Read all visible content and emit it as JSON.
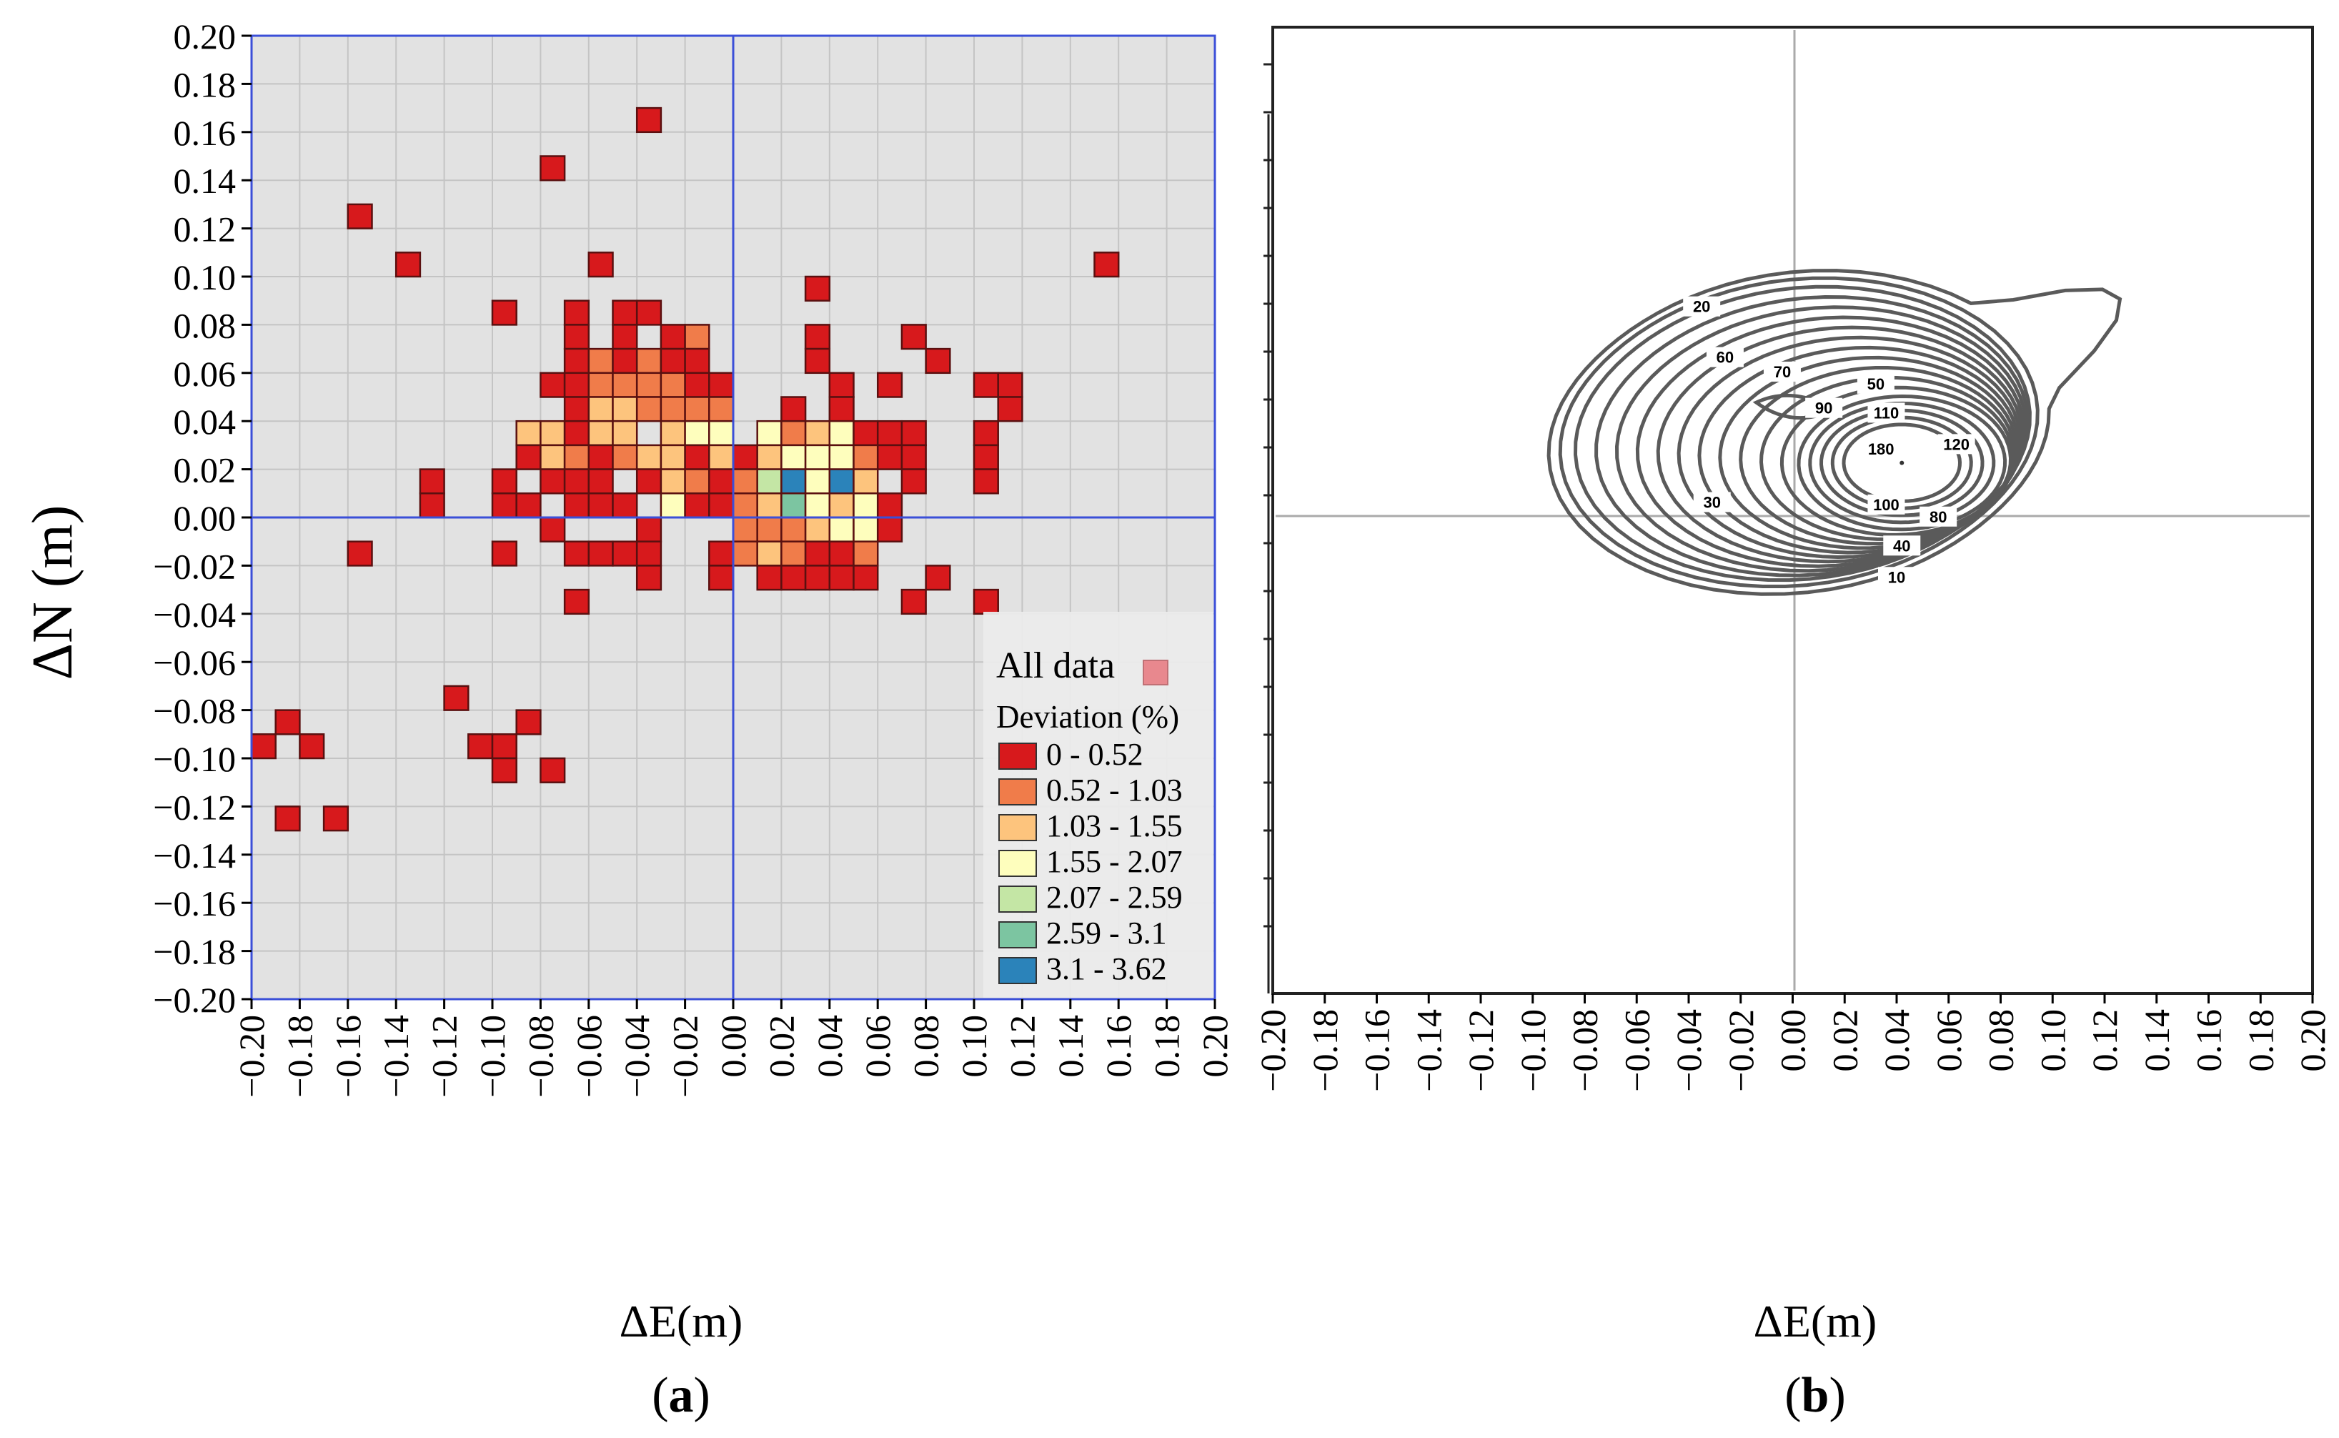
{
  "figure": {
    "panel_a_label_open": "(",
    "panel_a_label_letter": "a",
    "panel_a_label_close": ")",
    "panel_b_label_open": "(",
    "panel_b_label_letter": "b",
    "panel_b_label_close": ")"
  },
  "chart_data": [
    {
      "type": "heatmap",
      "panel": "a",
      "xlabel": "ΔE(m)",
      "ylabel": "ΔN (m)",
      "xlim": [
        -0.2,
        0.2
      ],
      "ylim": [
        -0.2,
        0.2
      ],
      "cell_size": 0.01,
      "grid": true,
      "xticks": [
        "−0.20",
        "−0.18",
        "−0.16",
        "−0.14",
        "−0.12",
        "−0.10",
        "−0.08",
        "−0.06",
        "−0.04",
        "−0.02",
        "0.00",
        "0.02",
        "0.04",
        "0.06",
        "0.08",
        "0.10",
        "0.12",
        "0.14",
        "0.16",
        "0.18",
        "0.20"
      ],
      "yticks": [
        "0.20",
        "0.18",
        "0.16",
        "0.14",
        "0.12",
        "0.10",
        "0.08",
        "0.06",
        "0.04",
        "0.02",
        "0.00",
        "−0.02",
        "−0.04",
        "−0.06",
        "−0.08",
        "−0.10",
        "−0.12",
        "−0.14",
        "−0.16",
        "−0.18",
        "−0.20"
      ],
      "legend": {
        "position": "bottom-right",
        "title_all": "All data",
        "title_deviation": "Deviation (%)",
        "all_data_color": "#e8888e",
        "classes": [
          {
            "label": "0 - 0.52",
            "color": "#d7191c"
          },
          {
            "label": "0.52 - 1.03",
            "color": "#f07c4a"
          },
          {
            "label": "1.03 - 1.55",
            "color": "#fdc47d"
          },
          {
            "label": "1.55 - 2.07",
            "color": "#fefebd"
          },
          {
            "label": "2.07 - 2.59",
            "color": "#c4e6a5"
          },
          {
            "label": "2.59 - 3.1",
            "color": "#7cc5a1"
          },
          {
            "label": "3.1 - 3.62",
            "color": "#2b83ba"
          }
        ]
      },
      "cells": [
        [
          -0.035,
          0.165,
          0
        ],
        [
          -0.075,
          0.145,
          0
        ],
        [
          -0.155,
          0.125,
          0
        ],
        [
          -0.135,
          0.105,
          0
        ],
        [
          -0.055,
          0.105,
          0
        ],
        [
          0.155,
          0.105,
          0
        ],
        [
          0.035,
          0.095,
          0
        ],
        [
          -0.095,
          0.085,
          0
        ],
        [
          -0.065,
          0.085,
          0
        ],
        [
          -0.045,
          0.085,
          0
        ],
        [
          -0.035,
          0.085,
          0
        ],
        [
          -0.065,
          0.075,
          0
        ],
        [
          -0.045,
          0.075,
          0
        ],
        [
          -0.025,
          0.075,
          0
        ],
        [
          -0.015,
          0.075,
          1
        ],
        [
          0.035,
          0.075,
          0
        ],
        [
          0.075,
          0.075,
          0
        ],
        [
          -0.065,
          0.065,
          0
        ],
        [
          -0.055,
          0.065,
          1
        ],
        [
          -0.045,
          0.065,
          0
        ],
        [
          -0.035,
          0.065,
          1
        ],
        [
          -0.025,
          0.065,
          0
        ],
        [
          -0.015,
          0.065,
          0
        ],
        [
          0.035,
          0.065,
          0
        ],
        [
          0.085,
          0.065,
          0
        ],
        [
          -0.075,
          0.055,
          0
        ],
        [
          -0.065,
          0.055,
          0
        ],
        [
          -0.055,
          0.055,
          1
        ],
        [
          -0.045,
          0.055,
          1
        ],
        [
          -0.035,
          0.055,
          1
        ],
        [
          -0.025,
          0.055,
          1
        ],
        [
          -0.015,
          0.055,
          0
        ],
        [
          -0.005,
          0.055,
          0
        ],
        [
          0.045,
          0.055,
          0
        ],
        [
          0.065,
          0.055,
          0
        ],
        [
          0.105,
          0.055,
          0
        ],
        [
          0.115,
          0.055,
          0
        ],
        [
          -0.065,
          0.045,
          0
        ],
        [
          -0.055,
          0.045,
          2
        ],
        [
          -0.045,
          0.045,
          2
        ],
        [
          -0.035,
          0.045,
          1
        ],
        [
          -0.025,
          0.045,
          1
        ],
        [
          -0.015,
          0.045,
          1
        ],
        [
          -0.005,
          0.045,
          1
        ],
        [
          0.025,
          0.045,
          0
        ],
        [
          0.045,
          0.045,
          0
        ],
        [
          0.115,
          0.045,
          0
        ],
        [
          -0.085,
          0.035,
          2
        ],
        [
          -0.075,
          0.035,
          2
        ],
        [
          -0.065,
          0.035,
          0
        ],
        [
          -0.055,
          0.035,
          2
        ],
        [
          -0.045,
          0.035,
          2
        ],
        [
          -0.025,
          0.035,
          2
        ],
        [
          -0.015,
          0.035,
          3
        ],
        [
          -0.005,
          0.035,
          3
        ],
        [
          0.015,
          0.035,
          3
        ],
        [
          0.025,
          0.035,
          1
        ],
        [
          0.035,
          0.035,
          2
        ],
        [
          0.045,
          0.035,
          3
        ],
        [
          0.055,
          0.035,
          0
        ],
        [
          0.065,
          0.035,
          0
        ],
        [
          0.075,
          0.035,
          0
        ],
        [
          0.105,
          0.035,
          0
        ],
        [
          -0.085,
          0.025,
          0
        ],
        [
          -0.075,
          0.025,
          2
        ],
        [
          -0.065,
          0.025,
          1
        ],
        [
          -0.055,
          0.025,
          0
        ],
        [
          -0.045,
          0.025,
          1
        ],
        [
          -0.035,
          0.025,
          2
        ],
        [
          -0.025,
          0.025,
          2
        ],
        [
          -0.015,
          0.025,
          0
        ],
        [
          -0.005,
          0.025,
          2
        ],
        [
          0.005,
          0.025,
          0
        ],
        [
          0.015,
          0.025,
          2
        ],
        [
          0.025,
          0.025,
          3
        ],
        [
          0.035,
          0.025,
          3
        ],
        [
          0.045,
          0.025,
          3
        ],
        [
          0.055,
          0.025,
          1
        ],
        [
          0.065,
          0.025,
          0
        ],
        [
          0.075,
          0.025,
          0
        ],
        [
          0.105,
          0.025,
          0
        ],
        [
          -0.125,
          0.015,
          0
        ],
        [
          -0.095,
          0.015,
          0
        ],
        [
          -0.075,
          0.015,
          0
        ],
        [
          -0.065,
          0.015,
          0
        ],
        [
          -0.055,
          0.015,
          0
        ],
        [
          -0.035,
          0.015,
          0
        ],
        [
          -0.025,
          0.015,
          2
        ],
        [
          -0.015,
          0.015,
          1
        ],
        [
          -0.005,
          0.015,
          0
        ],
        [
          0.005,
          0.015,
          1
        ],
        [
          0.015,
          0.015,
          4
        ],
        [
          0.025,
          0.015,
          6
        ],
        [
          0.035,
          0.015,
          3
        ],
        [
          0.045,
          0.015,
          6
        ],
        [
          0.055,
          0.015,
          2
        ],
        [
          0.075,
          0.015,
          0
        ],
        [
          0.105,
          0.015,
          0
        ],
        [
          -0.125,
          0.005,
          0
        ],
        [
          -0.095,
          0.005,
          0
        ],
        [
          -0.085,
          0.005,
          0
        ],
        [
          -0.065,
          0.005,
          0
        ],
        [
          -0.055,
          0.005,
          0
        ],
        [
          -0.045,
          0.005,
          0
        ],
        [
          -0.025,
          0.005,
          3
        ],
        [
          -0.015,
          0.005,
          0
        ],
        [
          -0.005,
          0.005,
          0
        ],
        [
          0.005,
          0.005,
          1
        ],
        [
          0.015,
          0.005,
          2
        ],
        [
          0.025,
          0.005,
          5
        ],
        [
          0.035,
          0.005,
          3
        ],
        [
          0.045,
          0.005,
          2
        ],
        [
          0.055,
          0.005,
          3
        ],
        [
          0.065,
          0.005,
          0
        ],
        [
          -0.075,
          -0.005,
          0
        ],
        [
          -0.035,
          -0.005,
          0
        ],
        [
          0.005,
          -0.005,
          1
        ],
        [
          0.015,
          -0.005,
          1
        ],
        [
          0.025,
          -0.005,
          1
        ],
        [
          0.035,
          -0.005,
          2
        ],
        [
          0.045,
          -0.005,
          3
        ],
        [
          0.055,
          -0.005,
          3
        ],
        [
          0.065,
          -0.005,
          0
        ],
        [
          -0.155,
          -0.015,
          0
        ],
        [
          -0.095,
          -0.015,
          0
        ],
        [
          -0.065,
          -0.015,
          0
        ],
        [
          -0.055,
          -0.015,
          0
        ],
        [
          -0.045,
          -0.015,
          0
        ],
        [
          -0.035,
          -0.015,
          0
        ],
        [
          -0.005,
          -0.015,
          0
        ],
        [
          0.005,
          -0.015,
          1
        ],
        [
          0.015,
          -0.015,
          2
        ],
        [
          0.025,
          -0.015,
          1
        ],
        [
          0.035,
          -0.015,
          0
        ],
        [
          0.045,
          -0.015,
          0
        ],
        [
          0.055,
          -0.015,
          1
        ],
        [
          -0.035,
          -0.025,
          0
        ],
        [
          -0.005,
          -0.025,
          0
        ],
        [
          0.015,
          -0.025,
          0
        ],
        [
          0.025,
          -0.025,
          0
        ],
        [
          0.035,
          -0.025,
          0
        ],
        [
          0.045,
          -0.025,
          0
        ],
        [
          0.055,
          -0.025,
          0
        ],
        [
          0.085,
          -0.025,
          0
        ],
        [
          -0.065,
          -0.035,
          0
        ],
        [
          0.075,
          -0.035,
          0
        ],
        [
          0.105,
          -0.035,
          0
        ],
        [
          -0.115,
          -0.075,
          0
        ],
        [
          -0.185,
          -0.085,
          0
        ],
        [
          -0.085,
          -0.085,
          0
        ],
        [
          -0.195,
          -0.095,
          0
        ],
        [
          -0.175,
          -0.095,
          0
        ],
        [
          -0.105,
          -0.095,
          0
        ],
        [
          -0.095,
          -0.095,
          0
        ],
        [
          -0.095,
          -0.105,
          0
        ],
        [
          -0.075,
          -0.105,
          0
        ],
        [
          -0.185,
          -0.125,
          0
        ],
        [
          -0.165,
          -0.125,
          0
        ]
      ]
    },
    {
      "type": "contour",
      "panel": "b",
      "xlabel": "ΔE(m)",
      "ylabel": "",
      "xlim": [
        -0.2,
        0.2
      ],
      "ylim": [
        -0.2,
        0.2
      ],
      "xticks": [
        "−0.20",
        "−0.18",
        "−0.16",
        "−0.14",
        "−0.12",
        "−0.10",
        "−0.08",
        "−0.06",
        "−0.04",
        "−0.02",
        "0.00",
        "0.02",
        "0.04",
        "0.06",
        "0.08",
        "0.10",
        "0.12",
        "0.14",
        "0.16",
        "0.18",
        "0.20"
      ],
      "peak": {
        "x": 0.042,
        "y": 0.022
      },
      "contour_labels": [
        {
          "text": "20",
          "x": -0.035,
          "y": 0.085
        },
        {
          "text": "60",
          "x": -0.026,
          "y": 0.064
        },
        {
          "text": "70",
          "x": -0.004,
          "y": 0.058
        },
        {
          "text": "50",
          "x": 0.032,
          "y": 0.053
        },
        {
          "text": "90",
          "x": 0.012,
          "y": 0.043
        },
        {
          "text": "110",
          "x": 0.036,
          "y": 0.041
        },
        {
          "text": "180",
          "x": 0.034,
          "y": 0.026
        },
        {
          "text": "120",
          "x": 0.063,
          "y": 0.028
        },
        {
          "text": "30",
          "x": -0.031,
          "y": 0.004
        },
        {
          "text": "100",
          "x": 0.036,
          "y": 0.003
        },
        {
          "text": "80",
          "x": 0.056,
          "y": -0.002
        },
        {
          "text": "40",
          "x": 0.042,
          "y": -0.014
        },
        {
          "text": "10",
          "x": 0.04,
          "y": -0.027
        }
      ]
    }
  ]
}
